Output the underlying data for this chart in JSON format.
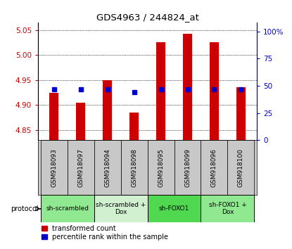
{
  "title": "GDS4963 / 244824_at",
  "samples": [
    "GSM918093",
    "GSM918097",
    "GSM918094",
    "GSM918098",
    "GSM918095",
    "GSM918099",
    "GSM918096",
    "GSM918100"
  ],
  "red_values": [
    4.925,
    4.905,
    4.95,
    4.885,
    5.025,
    5.043,
    5.025,
    4.935
  ],
  "blue_values_pct": [
    47,
    47,
    47,
    44,
    47,
    47,
    47,
    47
  ],
  "ylim_left": [
    4.83,
    5.065
  ],
  "ylim_right": [
    0,
    108.26
  ],
  "yticks_left": [
    4.85,
    4.9,
    4.95,
    5.0,
    5.05
  ],
  "yticks_right": [
    0,
    25,
    50,
    75,
    100
  ],
  "ytick_labels_right": [
    "0",
    "25",
    "50",
    "75",
    "100%"
  ],
  "bar_bottom": 4.83,
  "protocol_groups": [
    {
      "label": "sh-scrambled",
      "start": 0,
      "end": 2,
      "color": "#90e890"
    },
    {
      "label": "sh-scrambled +\nDox",
      "start": 2,
      "end": 4,
      "color": "#d0f0d0"
    },
    {
      "label": "sh-FOXO1",
      "start": 4,
      "end": 6,
      "color": "#50d850"
    },
    {
      "label": "sh-FOXO1 +\nDox",
      "start": 6,
      "end": 8,
      "color": "#90e890"
    }
  ],
  "red_color": "#cc0000",
  "blue_color": "#0000cc",
  "left_axis_color": "#cc0000",
  "right_axis_color": "#0000cc",
  "bg_color": "#ffffff",
  "sample_bg_color": "#c8c8c8"
}
